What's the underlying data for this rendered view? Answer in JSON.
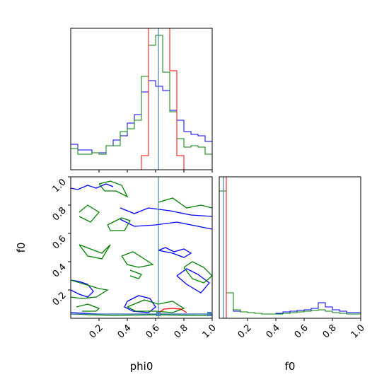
{
  "chart_data": {
    "type": "corner",
    "parameters": [
      "phi0",
      "f0"
    ],
    "axis_range": [
      0,
      1
    ],
    "tick_labels": [
      "0.2",
      "0.4",
      "0.6",
      "0.8",
      "1.0"
    ],
    "tick_values": [
      0.2,
      0.4,
      0.6,
      0.8,
      1.0
    ],
    "xlabels": [
      "phi0",
      "f0"
    ],
    "ylabel": "f0",
    "truth": {
      "phi0": 0.62,
      "f0": 0.03
    },
    "colors": {
      "blue": "#0000ff",
      "green": "#008000",
      "red": "#ff0000",
      "truth": "#4682b4"
    },
    "hist_bins": 20,
    "hist_phi0": {
      "blue": [
        0.18,
        0.14,
        0.14,
        0.12,
        0.12,
        0.17,
        0.21,
        0.24,
        0.33,
        0.39,
        0.55,
        0.63,
        0.59,
        0.56,
        0.42,
        0.35,
        0.27,
        0.25,
        0.24,
        0.2
      ],
      "green": [
        0.15,
        0.11,
        0.11,
        0.12,
        0.11,
        0.17,
        0.17,
        0.27,
        0.29,
        0.35,
        0.66,
        0.88,
        0.95,
        0.69,
        0.41,
        0.22,
        0.16,
        0.17,
        0.16,
        0.11
      ],
      "red": [
        0,
        0,
        0,
        0,
        0,
        0,
        0,
        0,
        0,
        0,
        0.1,
        1.05,
        1.05,
        1.05,
        0.7,
        0.1,
        0,
        0,
        0,
        0
      ]
    },
    "hist_f0": {
      "blue": [
        0.9,
        0.18,
        0.05,
        0.045,
        0.04,
        0.035,
        0.03,
        0.03,
        0.035,
        0.045,
        0.05,
        0.055,
        0.06,
        0.07,
        0.11,
        0.08,
        0.06,
        0.05,
        0.04,
        0.04
      ],
      "green": [
        0.9,
        0.18,
        0.06,
        0.045,
        0.04,
        0.035,
        0.03,
        0.03,
        0.03,
        0.035,
        0.04,
        0.045,
        0.05,
        0.055,
        0.06,
        0.05,
        0.04,
        0.035,
        0.03,
        0.03
      ],
      "red": [
        0,
        0,
        0,
        0,
        0,
        0,
        0,
        0,
        0,
        0,
        0,
        0,
        0,
        0,
        0,
        0,
        0,
        0,
        0,
        0
      ]
    },
    "contours": {
      "blue": [
        [
          [
            0.0,
            0.92
          ],
          [
            0.05,
            0.91
          ],
          [
            0.12,
            0.94
          ],
          [
            0.18,
            0.92
          ],
          [
            0.25,
            0.95
          ],
          [
            0.3,
            0.93
          ]
        ],
        [
          [
            0.35,
            0.78
          ],
          [
            0.45,
            0.74
          ],
          [
            0.55,
            0.78
          ],
          [
            0.7,
            0.76
          ],
          [
            0.85,
            0.73
          ],
          [
            1.0,
            0.72
          ]
        ],
        [
          [
            0.35,
            0.7
          ],
          [
            0.45,
            0.65
          ],
          [
            0.6,
            0.66
          ],
          [
            0.75,
            0.68
          ],
          [
            0.9,
            0.65
          ],
          [
            1.0,
            0.63
          ]
        ],
        [
          [
            0.62,
            0.48
          ],
          [
            0.67,
            0.5
          ],
          [
            0.73,
            0.47
          ],
          [
            0.8,
            0.49
          ],
          [
            0.85,
            0.46
          ],
          [
            0.8,
            0.43
          ],
          [
            0.72,
            0.46
          ],
          [
            0.62,
            0.48
          ]
        ],
        [
          [
            0.0,
            0.27
          ],
          [
            0.06,
            0.26
          ],
          [
            0.12,
            0.24
          ],
          [
            0.16,
            0.19
          ],
          [
            0.12,
            0.15
          ],
          [
            0.06,
            0.17
          ],
          [
            0.0,
            0.2
          ]
        ],
        [
          [
            0.4,
            0.12
          ],
          [
            0.48,
            0.16
          ],
          [
            0.56,
            0.14
          ],
          [
            0.6,
            0.08
          ],
          [
            0.55,
            0.04
          ],
          [
            0.44,
            0.05
          ],
          [
            0.38,
            0.08
          ],
          [
            0.4,
            0.12
          ]
        ],
        [
          [
            0.75,
            0.3
          ],
          [
            0.82,
            0.35
          ],
          [
            0.9,
            0.31
          ],
          [
            0.98,
            0.25
          ],
          [
            0.92,
            0.18
          ],
          [
            0.82,
            0.24
          ],
          [
            0.75,
            0.3
          ]
        ],
        [
          [
            0.0,
            0.04
          ],
          [
            0.2,
            0.03
          ],
          [
            0.4,
            0.03
          ],
          [
            0.6,
            0.03
          ],
          [
            0.8,
            0.03
          ],
          [
            1.0,
            0.03
          ]
        ]
      ],
      "green": [
        [
          [
            0.2,
            0.95
          ],
          [
            0.28,
            0.97
          ],
          [
            0.36,
            0.94
          ],
          [
            0.4,
            0.86
          ],
          [
            0.32,
            0.9
          ],
          [
            0.24,
            0.9
          ],
          [
            0.2,
            0.95
          ]
        ],
        [
          [
            0.06,
            0.75
          ],
          [
            0.12,
            0.8
          ],
          [
            0.2,
            0.75
          ],
          [
            0.14,
            0.68
          ],
          [
            0.06,
            0.72
          ]
        ],
        [
          [
            0.26,
            0.66
          ],
          [
            0.36,
            0.71
          ],
          [
            0.42,
            0.69
          ],
          [
            0.38,
            0.62
          ],
          [
            0.28,
            0.62
          ],
          [
            0.26,
            0.66
          ]
        ],
        [
          [
            0.62,
            0.82
          ],
          [
            0.72,
            0.85
          ],
          [
            0.82,
            0.78
          ],
          [
            0.92,
            0.8
          ],
          [
            1.0,
            0.78
          ]
        ],
        [
          [
            0.06,
            0.52
          ],
          [
            0.14,
            0.49
          ],
          [
            0.22,
            0.46
          ],
          [
            0.28,
            0.52
          ],
          [
            0.22,
            0.42
          ],
          [
            0.12,
            0.44
          ],
          [
            0.06,
            0.52
          ]
        ],
        [
          [
            0.36,
            0.44
          ],
          [
            0.44,
            0.47
          ],
          [
            0.52,
            0.42
          ],
          [
            0.58,
            0.38
          ],
          [
            0.48,
            0.36
          ],
          [
            0.4,
            0.38
          ],
          [
            0.36,
            0.44
          ]
        ],
        [
          [
            0.42,
            0.34
          ],
          [
            0.5,
            0.31
          ],
          [
            0.48,
            0.28
          ],
          [
            0.42,
            0.3
          ]
        ],
        [
          [
            0.0,
            0.27
          ],
          [
            0.1,
            0.24
          ],
          [
            0.2,
            0.21
          ],
          [
            0.26,
            0.2
          ],
          [
            0.18,
            0.15
          ],
          [
            0.08,
            0.14
          ],
          [
            0.0,
            0.15
          ]
        ],
        [
          [
            0.04,
            0.08
          ],
          [
            0.12,
            0.1
          ],
          [
            0.2,
            0.07
          ],
          [
            0.18,
            0.05
          ],
          [
            0.08,
            0.05
          ]
        ],
        [
          [
            0.4,
            0.08
          ],
          [
            0.52,
            0.13
          ],
          [
            0.62,
            0.1
          ],
          [
            0.72,
            0.12
          ],
          [
            0.8,
            0.07
          ],
          [
            0.72,
            0.04
          ],
          [
            0.6,
            0.05
          ],
          [
            0.46,
            0.05
          ],
          [
            0.4,
            0.08
          ]
        ],
        [
          [
            0.8,
            0.36
          ],
          [
            0.86,
            0.4
          ],
          [
            0.94,
            0.36
          ],
          [
            1.0,
            0.3
          ],
          [
            0.94,
            0.25
          ],
          [
            0.86,
            0.28
          ],
          [
            0.8,
            0.36
          ]
        ],
        [
          [
            0.0,
            0.03
          ],
          [
            0.3,
            0.02
          ],
          [
            0.6,
            0.025
          ],
          [
            0.9,
            0.02
          ],
          [
            1.0,
            0.02
          ]
        ]
      ],
      "red": [
        [
          [
            0.62,
            0.04
          ],
          [
            0.66,
            0.065
          ],
          [
            0.72,
            0.07
          ],
          [
            0.78,
            0.065
          ],
          [
            0.82,
            0.04
          ]
        ]
      ]
    },
    "truth_marker": [
      0.62,
      0.03
    ]
  }
}
